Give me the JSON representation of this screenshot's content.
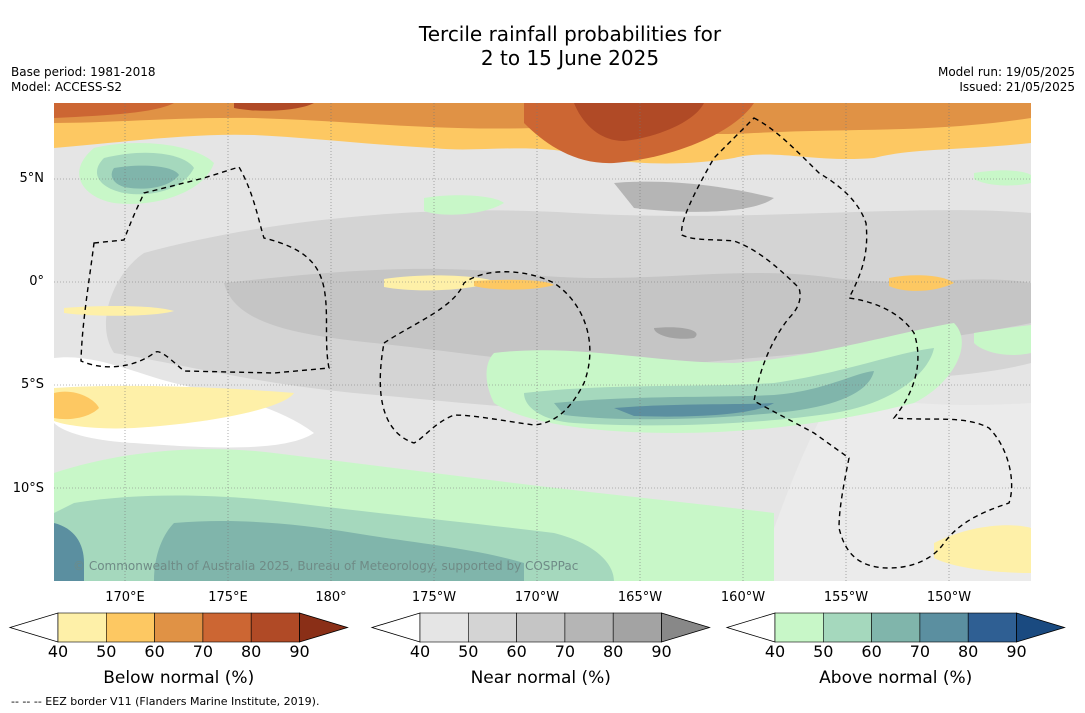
{
  "title_line1": "Tercile rainfall probabilities for",
  "title_line2": "2 to 15 June 2025",
  "base_period": "Base period: 1981-2018",
  "model": "Model: ACCESS-S2",
  "model_run": "Model run: 19/05/2025",
  "issued": "Issued: 21/05/2025",
  "lat_labels": [
    "5°N",
    "0°",
    "5°S",
    "10°S"
  ],
  "lon_labels": [
    "170°E",
    "175°E",
    "180°",
    "175°W",
    "170°W",
    "165°W",
    "160°W",
    "155°W",
    "150°W"
  ],
  "copyright": "© Commonwealth of Australia 2025, Bureau of Meteorology, supported by COSPPac",
  "colorbars": [
    {
      "title": "Below normal (%)",
      "ticks": [
        "40",
        "50",
        "60",
        "70",
        "80",
        "90"
      ],
      "colors": [
        "#ffffff",
        "#fef0a8",
        "#fdc862",
        "#e09245",
        "#cc6633",
        "#b04a26",
        "#8a2f17"
      ]
    },
    {
      "title": "Near normal (%)",
      "ticks": [
        "40",
        "50",
        "60",
        "70",
        "80",
        "90"
      ],
      "colors": [
        "#ffffff",
        "#e5e5e5",
        "#d4d4d4",
        "#c5c5c5",
        "#b5b5b5",
        "#a3a3a3",
        "#888888"
      ]
    },
    {
      "title": "Above normal (%)",
      "ticks": [
        "40",
        "50",
        "60",
        "70",
        "80",
        "90"
      ],
      "colors": [
        "#ffffff",
        "#c8f7c8",
        "#a5d8bd",
        "#80b5ab",
        "#5b8fa0",
        "#2f5f93",
        "#1a4a80"
      ]
    }
  ],
  "footnote": "--  --  -- EEZ border V11 (Flanders Marine Institute, 2019)."
}
